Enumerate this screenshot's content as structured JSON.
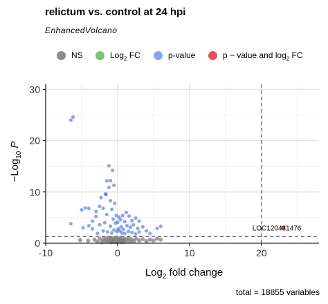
{
  "header": {
    "title": "relictum vs. control at 24 hpi",
    "subtitle": "EnhancedVolcano"
  },
  "legend": {
    "items": [
      {
        "key": "ns",
        "label": "NS",
        "color": "#808080"
      },
      {
        "key": "log2fc",
        "label": "Log2 FC",
        "color": "#4daf4a"
      },
      {
        "key": "pvalue",
        "label": "p-value",
        "color": "#4169e1"
      },
      {
        "key": "both",
        "label": "p − value and log2 FC",
        "color": "#e31a1c"
      }
    ]
  },
  "caption": "total = 18855 variables",
  "chart_data": {
    "type": "scatter",
    "xlabel": "Log2 fold change",
    "ylabel": "−Log10 P",
    "xlim": [
      -10,
      28
    ],
    "ylim": [
      0,
      31
    ],
    "x_ticks": [
      "-10",
      "0",
      "10",
      "20"
    ],
    "y_ticks": [
      "0",
      "10",
      "20",
      "30"
    ],
    "grid": true,
    "thresholds": {
      "x": 20,
      "y": 1.3
    },
    "series": [
      {
        "name": "NS",
        "color": "#808080",
        "points": [
          [
            -5.2,
            0.6
          ],
          [
            -4.1,
            0.5
          ],
          [
            -3.2,
            0.7
          ],
          [
            -2.8,
            0.3
          ],
          [
            -2.5,
            0.9
          ],
          [
            -2.2,
            0.2
          ],
          [
            -2.0,
            0.8
          ],
          [
            -1.8,
            0.5
          ],
          [
            -1.6,
            1.0
          ],
          [
            -1.5,
            0.3
          ],
          [
            -1.3,
            0.7
          ],
          [
            -1.2,
            1.1
          ],
          [
            -1.1,
            0.4
          ],
          [
            -1.0,
            0.9
          ],
          [
            -0.9,
            0.2
          ],
          [
            -0.8,
            0.6
          ],
          [
            -0.7,
            1.0
          ],
          [
            -0.6,
            0.3
          ],
          [
            -0.5,
            0.8
          ],
          [
            -0.4,
            0.5
          ],
          [
            -0.3,
            1.1
          ],
          [
            -0.2,
            0.2
          ],
          [
            -0.1,
            0.7
          ],
          [
            0.0,
            0.4
          ],
          [
            0.1,
            1.0
          ],
          [
            0.2,
            0.3
          ],
          [
            0.3,
            0.8
          ],
          [
            0.4,
            0.5
          ],
          [
            0.5,
            1.1
          ],
          [
            0.6,
            0.2
          ],
          [
            0.7,
            0.7
          ],
          [
            0.8,
            0.4
          ],
          [
            0.9,
            0.9
          ],
          [
            1.0,
            0.3
          ],
          [
            1.2,
            0.8
          ],
          [
            1.4,
            0.5
          ],
          [
            1.6,
            1.0
          ],
          [
            1.8,
            0.3
          ],
          [
            2.0,
            0.7
          ],
          [
            2.3,
            0.4
          ],
          [
            2.6,
            0.9
          ],
          [
            3.0,
            0.5
          ],
          [
            3.5,
            0.8
          ],
          [
            4.0,
            0.4
          ],
          [
            4.5,
            0.7
          ],
          [
            5.0,
            0.5
          ],
          [
            5.5,
            0.9
          ],
          [
            6.0,
            0.7
          ]
        ]
      },
      {
        "name": "Log2 FC",
        "color": "#4daf4a",
        "points": []
      },
      {
        "name": "p-value",
        "color": "#4169e1",
        "points": [
          [
            -6.5,
            24.0
          ],
          [
            -6.2,
            24.6
          ],
          [
            -6.5,
            3.8
          ],
          [
            -5.0,
            6.5
          ],
          [
            -4.8,
            3.0
          ],
          [
            -4.5,
            6.9
          ],
          [
            -4.0,
            6.8
          ],
          [
            -4.0,
            3.4
          ],
          [
            -3.5,
            4.3
          ],
          [
            -3.5,
            2.8
          ],
          [
            -3.0,
            6.2
          ],
          [
            -3.0,
            5.2
          ],
          [
            -2.8,
            1.9
          ],
          [
            -2.5,
            7.2
          ],
          [
            -2.5,
            3.6
          ],
          [
            -2.0,
            6.8
          ],
          [
            -2.0,
            2.4
          ],
          [
            -1.8,
            4.0
          ],
          [
            -1.6,
            9.5
          ],
          [
            -1.5,
            5.6
          ],
          [
            -1.4,
            2.2
          ],
          [
            -1.2,
            10.9
          ],
          [
            -1.0,
            8.3
          ],
          [
            -1.0,
            3.3
          ],
          [
            -0.8,
            6.6
          ],
          [
            -0.8,
            2.0
          ],
          [
            -0.7,
            14.2
          ],
          [
            -0.6,
            4.7
          ],
          [
            -0.5,
            11.3
          ],
          [
            -0.5,
            2.6
          ],
          [
            -0.4,
            7.8
          ],
          [
            -0.3,
            3.9
          ],
          [
            -0.2,
            5.4
          ],
          [
            -0.1,
            2.3
          ],
          [
            0.0,
            4.1
          ],
          [
            0.1,
            2.8
          ],
          [
            0.2,
            5.1
          ],
          [
            0.3,
            2.4
          ],
          [
            0.4,
            4.6
          ],
          [
            0.5,
            3.2
          ],
          [
            0.6,
            2.0
          ],
          [
            0.7,
            5.4
          ],
          [
            0.8,
            2.7
          ],
          [
            1.0,
            4.2
          ],
          [
            1.0,
            1.9
          ],
          [
            1.2,
            6.0
          ],
          [
            1.3,
            3.4
          ],
          [
            1.5,
            2.3
          ],
          [
            1.6,
            5.3
          ],
          [
            1.8,
            3.1
          ],
          [
            2.0,
            4.4
          ],
          [
            2.0,
            2.1
          ],
          [
            2.2,
            3.6
          ],
          [
            2.5,
            4.9
          ],
          [
            2.5,
            1.8
          ],
          [
            2.8,
            2.9
          ],
          [
            3.0,
            4.3
          ],
          [
            3.0,
            2.2
          ],
          [
            3.5,
            3.2
          ],
          [
            4.0,
            2.4
          ],
          [
            4.5,
            1.9
          ],
          [
            5.5,
            2.9
          ],
          [
            6.0,
            3.3
          ],
          [
            -1.2,
            15.1
          ],
          [
            -1.0,
            12.2
          ],
          [
            -1.5,
            12.2
          ],
          [
            -1.7,
            9.6
          ],
          [
            -2.3,
            8.9
          ]
        ]
      },
      {
        "name": "p − value and log2 FC",
        "color": "#e31a1c",
        "points": [
          [
            23.0,
            3.0
          ]
        ]
      }
    ],
    "annotations": [
      {
        "label": "LOC120431476",
        "x": 23.0,
        "y": 3.0
      }
    ]
  }
}
